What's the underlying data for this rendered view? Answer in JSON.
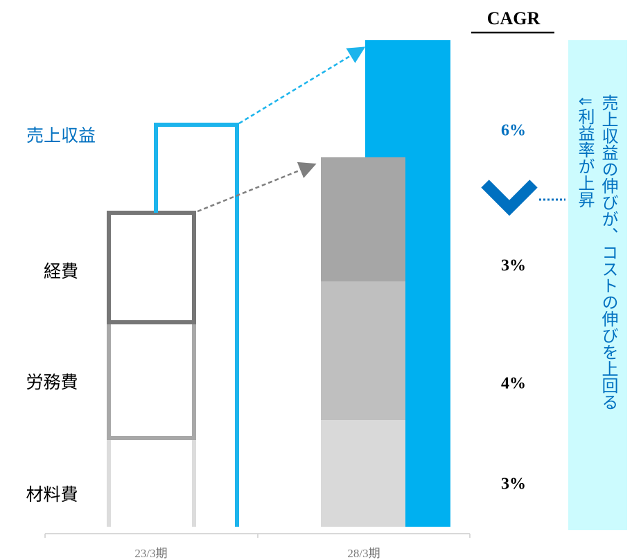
{
  "header": {
    "cagr": "CAGR"
  },
  "labels": {
    "revenue": "売上収益",
    "expense": "経費",
    "labor": "労務費",
    "material": "材料費"
  },
  "cagr_values": {
    "revenue": "6%",
    "expense": "3%",
    "labor": "4%",
    "material": "3%"
  },
  "periods": [
    "23/3期",
    "28/3期"
  ],
  "note": {
    "line1": "売上収益の伸びが、コストの伸びを上回る",
    "line2": "⇓利益率が上昇"
  }
}
